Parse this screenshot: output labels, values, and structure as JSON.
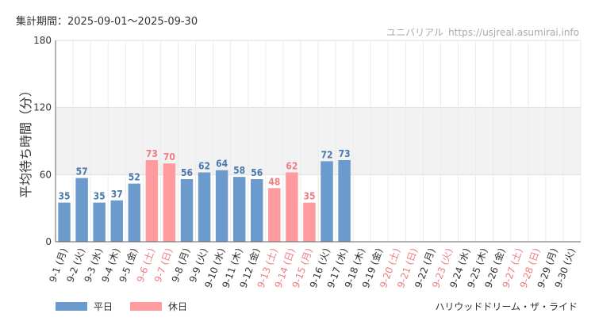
{
  "header": {
    "period": "集計期間：2025-09-01〜2025-09-30",
    "site_name": "ユニバリアル",
    "site_url": "https://usjreal.asumirai.info"
  },
  "footer": {
    "ride_name": "ハリウッドドリーム・ザ・ライド"
  },
  "colors": {
    "weekday": "#6b9bcd",
    "holiday": "#ff9a9e",
    "weekday_label": "#4a78ad",
    "holiday_label": "#f07b80",
    "band": "#f2f2f2"
  },
  "chart_data": {
    "type": "bar",
    "ylabel": "平均待ち時間（分）",
    "ylim": [
      0,
      180
    ],
    "yticks": [
      0,
      60,
      120,
      180
    ],
    "grid": true,
    "legend_position": "bottom-left",
    "categories": [
      "9-1 (月)",
      "9-2 (火)",
      "9-3 (水)",
      "9-4 (木)",
      "9-5 (金)",
      "9-6 (土)",
      "9-7 (日)",
      "9-8 (月)",
      "9-9 (火)",
      "9-10 (水)",
      "9-11 (木)",
      "9-12 (金)",
      "9-13 (土)",
      "9-14 (日)",
      "9-15 (月)",
      "9-16 (火)",
      "9-17 (水)",
      "9-18 (木)",
      "9-19 (金)",
      "9-20 (土)",
      "9-21 (日)",
      "9-22 (月)",
      "9-23 (火)",
      "9-24 (水)",
      "9-25 (木)",
      "9-26 (金)",
      "9-27 (土)",
      "9-28 (日)",
      "9-29 (月)",
      "9-30 (火)"
    ],
    "values": [
      35,
      57,
      35,
      37,
      52,
      73,
      70,
      56,
      62,
      64,
      58,
      56,
      48,
      62,
      35,
      72,
      73,
      null,
      null,
      null,
      null,
      null,
      null,
      null,
      null,
      null,
      null,
      null,
      null,
      null
    ],
    "day_type": [
      "weekday",
      "weekday",
      "weekday",
      "weekday",
      "weekday",
      "holiday",
      "holiday",
      "weekday",
      "weekday",
      "weekday",
      "weekday",
      "weekday",
      "holiday",
      "holiday",
      "holiday",
      "weekday",
      "weekday",
      "weekday",
      "weekday",
      "holiday",
      "holiday",
      "weekday",
      "holiday",
      "weekday",
      "weekday",
      "weekday",
      "holiday",
      "holiday",
      "weekday",
      "weekday"
    ],
    "legend": [
      {
        "key": "weekday",
        "label": "平日"
      },
      {
        "key": "holiday",
        "label": "休日"
      }
    ]
  }
}
